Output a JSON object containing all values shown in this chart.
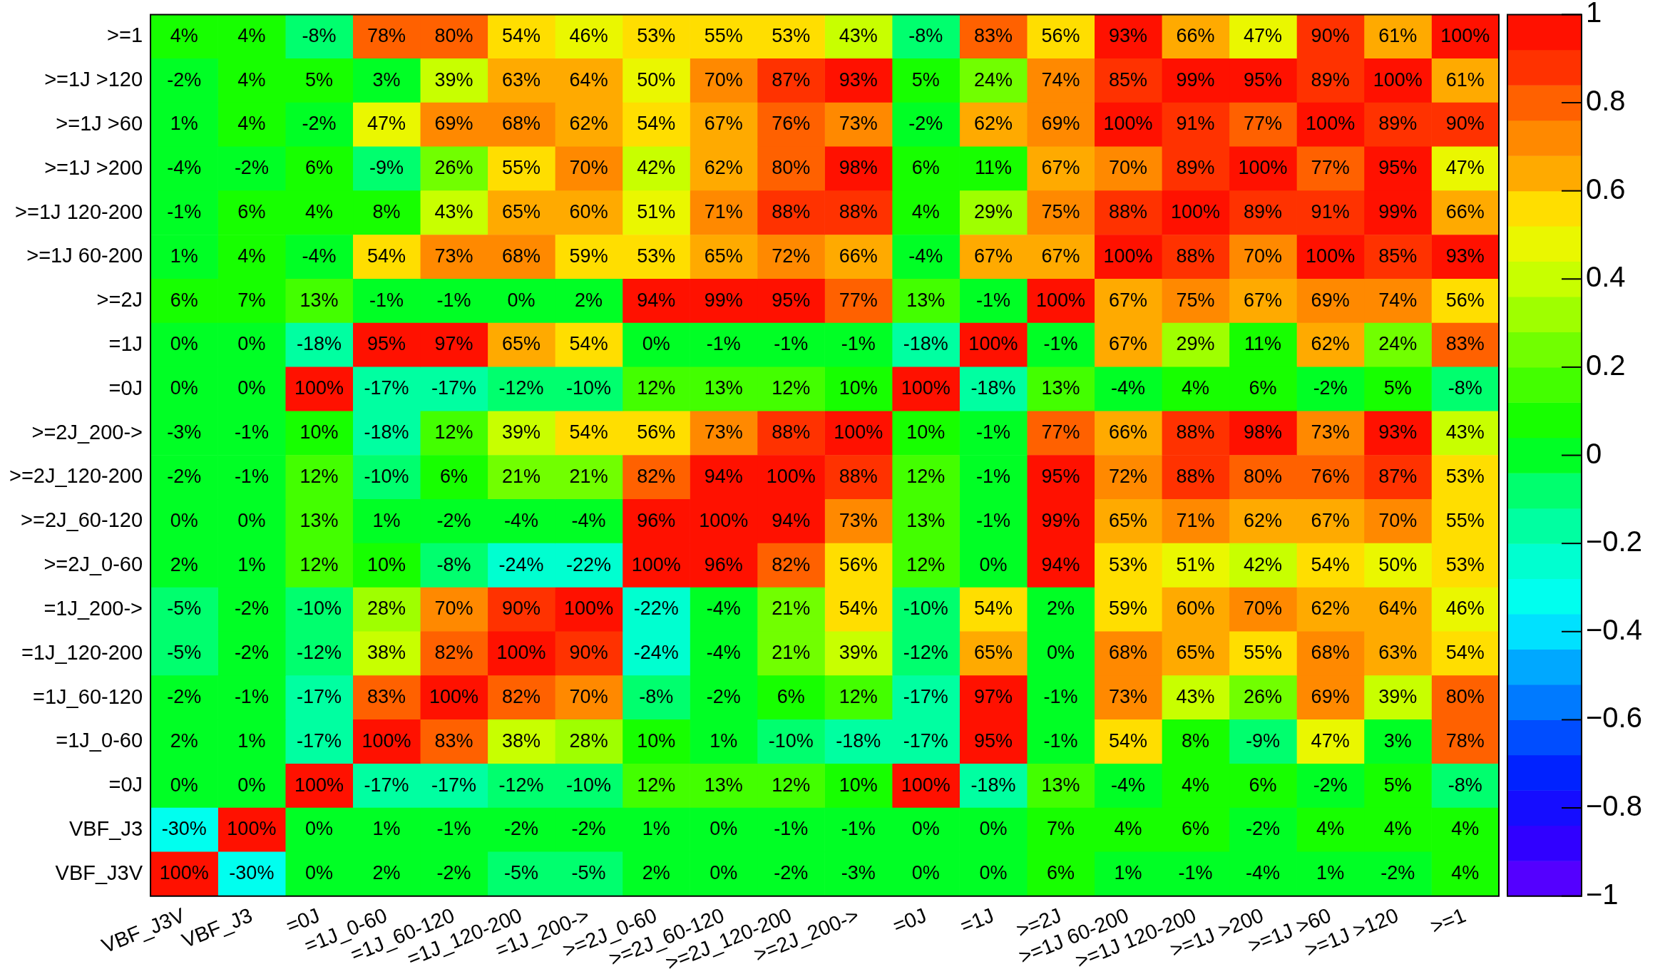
{
  "chart_data": {
    "type": "heatmap",
    "categories": [
      "VBF_J3V",
      "VBF_J3",
      "=0J",
      "=1J_0-60",
      "=1J_60-120",
      "=1J_120-200",
      "=1J_200->",
      ">=2J_0-60",
      ">=2J_60-120",
      ">=2J_120-200",
      ">=2J_200->",
      "=0J",
      "=1J",
      ">=2J",
      ">=1J 60-200",
      ">=1J 120-200",
      ">=1J >200",
      ">=1J >60",
      ">=1J >120",
      ">=1"
    ],
    "y_categories": [
      ">=1",
      ">=1J >120",
      ">=1J >60",
      ">=1J >200",
      ">=1J 120-200",
      ">=1J 60-200",
      ">=2J",
      "=1J",
      "=0J",
      ">=2J_200->",
      ">=2J_120-200",
      ">=2J_60-120",
      ">=2J_0-60",
      "=1J_200->",
      "=1J_120-200",
      "=1J_60-120",
      "=1J_0-60",
      "=0J",
      "VBF_J3",
      "VBF_J3V"
    ],
    "cells": [
      [
        0.04,
        0.04,
        -0.08,
        0.78,
        0.8,
        0.54,
        0.46,
        0.53,
        0.55,
        0.53,
        0.43,
        -0.08,
        0.83,
        0.56,
        0.93,
        0.66,
        0.47,
        0.9,
        0.61,
        1.0
      ],
      [
        -0.02,
        0.04,
        0.05,
        0.03,
        0.39,
        0.63,
        0.64,
        0.5,
        0.7,
        0.87,
        0.93,
        0.05,
        0.24,
        0.74,
        0.85,
        0.99,
        0.95,
        0.89,
        1.0,
        0.61
      ],
      [
        0.01,
        0.04,
        -0.02,
        0.47,
        0.69,
        0.68,
        0.62,
        0.54,
        0.67,
        0.76,
        0.73,
        -0.02,
        0.62,
        0.69,
        1.0,
        0.91,
        0.77,
        1.0,
        0.89,
        0.9
      ],
      [
        -0.04,
        -0.02,
        0.06,
        -0.09,
        0.26,
        0.55,
        0.7,
        0.42,
        0.62,
        0.8,
        0.98,
        0.06,
        0.11,
        0.67,
        0.7,
        0.89,
        1.0,
        0.77,
        0.95,
        0.47
      ],
      [
        -0.01,
        0.06,
        0.04,
        0.08,
        0.43,
        0.65,
        0.6,
        0.51,
        0.71,
        0.88,
        0.88,
        0.04,
        0.29,
        0.75,
        0.88,
        1.0,
        0.89,
        0.91,
        0.99,
        0.66
      ],
      [
        0.01,
        0.04,
        -0.04,
        0.54,
        0.73,
        0.68,
        0.59,
        0.53,
        0.65,
        0.72,
        0.66,
        -0.04,
        0.67,
        0.67,
        1.0,
        0.88,
        0.7,
        1.0,
        0.85,
        0.93
      ],
      [
        0.06,
        0.07,
        0.13,
        -0.01,
        -0.01,
        0.0,
        0.02,
        0.94,
        0.99,
        0.95,
        0.77,
        0.13,
        -0.01,
        1.0,
        0.67,
        0.75,
        0.67,
        0.69,
        0.74,
        0.56
      ],
      [
        0.0,
        0.0,
        -0.18,
        0.95,
        0.97,
        0.65,
        0.54,
        0.0,
        -0.01,
        -0.01,
        -0.01,
        -0.18,
        1.0,
        -0.01,
        0.67,
        0.29,
        0.11,
        0.62,
        0.24,
        0.83
      ],
      [
        0.0,
        0.0,
        1.0,
        -0.17,
        -0.17,
        -0.12,
        -0.1,
        0.12,
        0.13,
        0.12,
        0.1,
        1.0,
        -0.18,
        0.13,
        -0.04,
        0.04,
        0.06,
        -0.02,
        0.05,
        -0.08
      ],
      [
        -0.03,
        -0.01,
        0.1,
        -0.18,
        0.12,
        0.39,
        0.54,
        0.56,
        0.73,
        0.88,
        1.0,
        0.1,
        -0.01,
        0.77,
        0.66,
        0.88,
        0.98,
        0.73,
        0.93,
        0.43
      ],
      [
        -0.02,
        -0.01,
        0.12,
        -0.1,
        0.06,
        0.21,
        0.21,
        0.82,
        0.94,
        1.0,
        0.88,
        0.12,
        -0.01,
        0.95,
        0.72,
        0.88,
        0.8,
        0.76,
        0.87,
        0.53
      ],
      [
        0.0,
        0.0,
        0.13,
        0.01,
        -0.02,
        -0.04,
        -0.04,
        0.96,
        1.0,
        0.94,
        0.73,
        0.13,
        -0.01,
        0.99,
        0.65,
        0.71,
        0.62,
        0.67,
        0.7,
        0.55
      ],
      [
        0.02,
        0.01,
        0.12,
        0.1,
        -0.08,
        -0.24,
        -0.22,
        1.0,
        0.96,
        0.82,
        0.56,
        0.12,
        0.0,
        0.94,
        0.53,
        0.51,
        0.42,
        0.54,
        0.5,
        0.53
      ],
      [
        -0.05,
        -0.02,
        -0.1,
        0.28,
        0.7,
        0.9,
        1.0,
        -0.22,
        -0.04,
        0.21,
        0.54,
        -0.1,
        0.54,
        0.02,
        0.59,
        0.6,
        0.7,
        0.62,
        0.64,
        0.46
      ],
      [
        -0.05,
        -0.02,
        -0.12,
        0.38,
        0.82,
        1.0,
        0.9,
        -0.24,
        -0.04,
        0.21,
        0.39,
        -0.12,
        0.65,
        0.0,
        0.68,
        0.65,
        0.55,
        0.68,
        0.63,
        0.54
      ],
      [
        -0.02,
        -0.01,
        -0.17,
        0.83,
        1.0,
        0.82,
        0.7,
        -0.08,
        -0.02,
        0.06,
        0.12,
        -0.17,
        0.97,
        -0.01,
        0.73,
        0.43,
        0.26,
        0.69,
        0.39,
        0.8
      ],
      [
        0.02,
        0.01,
        -0.17,
        1.0,
        0.83,
        0.38,
        0.28,
        0.1,
        0.01,
        -0.1,
        -0.18,
        -0.17,
        0.95,
        -0.01,
        0.54,
        0.08,
        -0.09,
        0.47,
        0.03,
        0.78
      ],
      [
        0.0,
        0.0,
        1.0,
        -0.17,
        -0.17,
        -0.12,
        -0.1,
        0.12,
        0.13,
        0.12,
        0.1,
        1.0,
        -0.18,
        0.13,
        -0.04,
        0.04,
        0.06,
        -0.02,
        0.05,
        -0.08
      ],
      [
        -0.3,
        1.0,
        0.0,
        0.01,
        -0.01,
        -0.02,
        -0.02,
        0.01,
        0.0,
        -0.01,
        -0.01,
        0.0,
        0.0,
        0.07,
        0.04,
        0.06,
        -0.02,
        0.04,
        0.04,
        0.04
      ],
      [
        1.0,
        -0.3,
        0.0,
        0.02,
        -0.02,
        -0.05,
        -0.05,
        0.02,
        0.0,
        -0.02,
        -0.03,
        0.0,
        0.0,
        0.06,
        0.01,
        -0.01,
        -0.04,
        0.01,
        -0.02,
        0.04
      ]
    ],
    "cell_labels": [
      [
        "4%",
        "4%",
        "-8%",
        "78%",
        "80%",
        "54%",
        "46%",
        "53%",
        "55%",
        "53%",
        "43%",
        "-8%",
        "83%",
        "56%",
        "93%",
        "66%",
        "47%",
        "90%",
        "61%",
        "100%"
      ],
      [
        "-2%",
        "4%",
        "5%",
        "3%",
        "39%",
        "63%",
        "64%",
        "50%",
        "70%",
        "87%",
        "93%",
        "5%",
        "24%",
        "74%",
        "85%",
        "99%",
        "95%",
        "89%",
        "100%",
        "61%"
      ],
      [
        "1%",
        "4%",
        "-2%",
        "47%",
        "69%",
        "68%",
        "62%",
        "54%",
        "67%",
        "76%",
        "73%",
        "-2%",
        "62%",
        "69%",
        "100%",
        "91%",
        "77%",
        "100%",
        "89%",
        "90%"
      ],
      [
        "-4%",
        "-2%",
        "6%",
        "-9%",
        "26%",
        "55%",
        "70%",
        "42%",
        "62%",
        "80%",
        "98%",
        "6%",
        "11%",
        "67%",
        "70%",
        "89%",
        "100%",
        "77%",
        "95%",
        "47%"
      ],
      [
        "-1%",
        "6%",
        "4%",
        "8%",
        "43%",
        "65%",
        "60%",
        "51%",
        "71%",
        "88%",
        "88%",
        "4%",
        "29%",
        "75%",
        "88%",
        "100%",
        "89%",
        "91%",
        "99%",
        "66%"
      ],
      [
        "1%",
        "4%",
        "-4%",
        "54%",
        "73%",
        "68%",
        "59%",
        "53%",
        "65%",
        "72%",
        "66%",
        "-4%",
        "67%",
        "67%",
        "100%",
        "88%",
        "70%",
        "100%",
        "85%",
        "93%"
      ],
      [
        "6%",
        "7%",
        "13%",
        "-1%",
        "-1%",
        "0%",
        "2%",
        "94%",
        "99%",
        "95%",
        "77%",
        "13%",
        "-1%",
        "100%",
        "67%",
        "75%",
        "67%",
        "69%",
        "74%",
        "56%"
      ],
      [
        "0%",
        "0%",
        "-18%",
        "95%",
        "97%",
        "65%",
        "54%",
        "0%",
        "-1%",
        "-1%",
        "-1%",
        "-18%",
        "100%",
        "-1%",
        "67%",
        "29%",
        "11%",
        "62%",
        "24%",
        "83%"
      ],
      [
        "0%",
        "0%",
        "100%",
        "-17%",
        "-17%",
        "-12%",
        "-10%",
        "12%",
        "13%",
        "12%",
        "10%",
        "100%",
        "-18%",
        "13%",
        "-4%",
        "4%",
        "6%",
        "-2%",
        "5%",
        "-8%"
      ],
      [
        "-3%",
        "-1%",
        "10%",
        "-18%",
        "12%",
        "39%",
        "54%",
        "56%",
        "73%",
        "88%",
        "100%",
        "10%",
        "-1%",
        "77%",
        "66%",
        "88%",
        "98%",
        "73%",
        "93%",
        "43%"
      ],
      [
        "-2%",
        "-1%",
        "12%",
        "-10%",
        "6%",
        "21%",
        "21%",
        "82%",
        "94%",
        "100%",
        "88%",
        "12%",
        "-1%",
        "95%",
        "72%",
        "88%",
        "80%",
        "76%",
        "87%",
        "53%"
      ],
      [
        "0%",
        "0%",
        "13%",
        "1%",
        "-2%",
        "-4%",
        "-4%",
        "96%",
        "100%",
        "94%",
        "73%",
        "13%",
        "-1%",
        "99%",
        "65%",
        "71%",
        "62%",
        "67%",
        "70%",
        "55%"
      ],
      [
        "2%",
        "1%",
        "12%",
        "10%",
        "-8%",
        "-24%",
        "-22%",
        "100%",
        "96%",
        "82%",
        "56%",
        "12%",
        "0%",
        "94%",
        "53%",
        "51%",
        "42%",
        "54%",
        "50%",
        "53%"
      ],
      [
        "-5%",
        "-2%",
        "-10%",
        "28%",
        "70%",
        "90%",
        "100%",
        "-22%",
        "-4%",
        "21%",
        "54%",
        "-10%",
        "54%",
        "2%",
        "59%",
        "60%",
        "70%",
        "62%",
        "64%",
        "46%"
      ],
      [
        "-5%",
        "-2%",
        "-12%",
        "38%",
        "82%",
        "100%",
        "90%",
        "-24%",
        "-4%",
        "21%",
        "39%",
        "-12%",
        "65%",
        "0%",
        "68%",
        "65%",
        "55%",
        "68%",
        "63%",
        "54%"
      ],
      [
        "-2%",
        "-1%",
        "-17%",
        "83%",
        "100%",
        "82%",
        "70%",
        "-8%",
        "-2%",
        "6%",
        "12%",
        "-17%",
        "97%",
        "-1%",
        "73%",
        "43%",
        "26%",
        "69%",
        "39%",
        "80%"
      ],
      [
        "2%",
        "1%",
        "-17%",
        "100%",
        "83%",
        "38%",
        "28%",
        "10%",
        "1%",
        "-10%",
        "-18%",
        "-17%",
        "95%",
        "-1%",
        "54%",
        "8%",
        "-9%",
        "47%",
        "3%",
        "78%"
      ],
      [
        "0%",
        "0%",
        "100%",
        "-17%",
        "-17%",
        "-12%",
        "-10%",
        "12%",
        "13%",
        "12%",
        "10%",
        "100%",
        "-18%",
        "13%",
        "-4%",
        "4%",
        "6%",
        "-2%",
        "5%",
        "-8%"
      ],
      [
        "-30%",
        "100%",
        "0%",
        "1%",
        "-1%",
        "-2%",
        "-2%",
        "1%",
        "0%",
        "-1%",
        "-1%",
        "0%",
        "0%",
        "7%",
        "4%",
        "6%",
        "-2%",
        "4%",
        "4%",
        "4%"
      ],
      [
        "100%",
        "-30%",
        "0%",
        "2%",
        "-2%",
        "-5%",
        "-5%",
        "2%",
        "0%",
        "-2%",
        "-3%",
        "0%",
        "0%",
        "6%",
        "1%",
        "-1%",
        "-4%",
        "1%",
        "-2%",
        "4%"
      ]
    ],
    "clim": [
      -1,
      1
    ],
    "cticks": [
      1,
      0.8,
      0.6,
      0.4,
      0.2,
      0,
      {
        "value": -0.2,
        "label": "−0.2"
      },
      {
        "value": -0.4,
        "label": "−0.4"
      },
      {
        "value": -0.6,
        "label": "−0.6"
      },
      {
        "value": -0.8,
        "label": "−0.8"
      },
      {
        "value": -1,
        "label": "−1"
      }
    ],
    "legend": false,
    "grid": false
  }
}
